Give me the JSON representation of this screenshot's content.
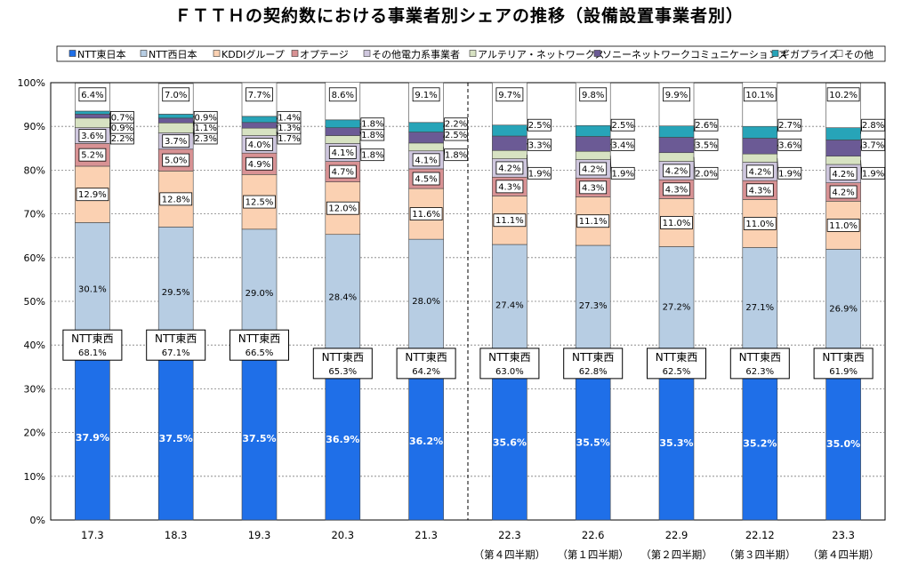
{
  "chart_data": {
    "type": "bar",
    "stacked": true,
    "title": "ＦＴＴＨの契約数における事業者別シェアの推移（設備設置事業者別）",
    "categories": [
      "17.3",
      "18.3",
      "19.3",
      "20.3",
      "21.3",
      "22.3",
      "22.6",
      "22.9",
      "22.12",
      "23.3"
    ],
    "category_sublabels": [
      "",
      "",
      "",
      "",
      "",
      "（第４四半期）",
      "（第１四半期）",
      "（第２四半期）",
      "（第３四半期）",
      "（第４四半期）"
    ],
    "ylim": [
      0,
      100
    ],
    "yticks": [
      "0%",
      "10%",
      "20%",
      "30%",
      "40%",
      "50%",
      "60%",
      "70%",
      "80%",
      "90%",
      "100%"
    ],
    "grid": true,
    "legend_position": "top",
    "combined_label": "NTT東西",
    "combined_values": [
      "68.1%",
      "67.1%",
      "66.5%",
      "65.3%",
      "64.2%",
      "63.0%",
      "62.8%",
      "62.5%",
      "62.3%",
      "61.9%"
    ],
    "series": [
      {
        "name": "NTT東日本",
        "color": "#1f6fe8",
        "values": [
          37.9,
          37.5,
          37.5,
          36.9,
          36.2,
          35.6,
          35.5,
          35.3,
          35.2,
          35.0
        ],
        "labels": [
          "37.9%",
          "37.5%",
          "37.5%",
          "36.9%",
          "36.2%",
          "35.6%",
          "35.5%",
          "35.3%",
          "35.2%",
          "35.0%"
        ]
      },
      {
        "name": "NTT西日本",
        "color": "#b7cde3",
        "values": [
          30.1,
          29.5,
          29.0,
          28.4,
          28.0,
          27.4,
          27.3,
          27.2,
          27.1,
          26.9
        ],
        "labels": [
          "30.1%",
          "29.5%",
          "29.0%",
          "28.4%",
          "28.0%",
          "27.4%",
          "27.3%",
          "27.2%",
          "27.1%",
          "26.9%"
        ]
      },
      {
        "name": "KDDIグループ",
        "color": "#fbd1b2",
        "values": [
          12.9,
          12.8,
          12.5,
          12.0,
          11.6,
          11.1,
          11.1,
          11.0,
          11.0,
          11.0
        ],
        "labels": [
          "12.9%",
          "12.8%",
          "12.5%",
          "12.0%",
          "11.6%",
          "11.1%",
          "11.1%",
          "11.0%",
          "11.0%",
          "11.0%"
        ]
      },
      {
        "name": "オプテージ",
        "color": "#d89294",
        "values": [
          5.2,
          5.0,
          4.9,
          4.7,
          4.5,
          4.3,
          4.3,
          4.3,
          4.3,
          4.2
        ],
        "labels": [
          "5.2%",
          "5.0%",
          "4.9%",
          "4.7%",
          "4.5%",
          "4.3%",
          "4.3%",
          "4.3%",
          "4.3%",
          "4.2%"
        ]
      },
      {
        "name": "その他電力系事業者",
        "color": "#cfc7de",
        "values": [
          3.6,
          3.7,
          4.0,
          4.1,
          4.1,
          4.2,
          4.2,
          4.2,
          4.2,
          4.2
        ],
        "labels": [
          "3.6%",
          "3.7%",
          "4.0%",
          "4.1%",
          "4.1%",
          "4.2%",
          "4.2%",
          "4.2%",
          "4.2%",
          "4.2%"
        ]
      },
      {
        "name": "アルテリア・ネットワークス",
        "color": "#d7e2c2",
        "values": [
          2.2,
          2.3,
          1.7,
          1.8,
          1.8,
          1.9,
          1.9,
          2.0,
          1.9,
          1.9
        ],
        "labels": [
          "2.2%",
          "2.3%",
          "1.7%",
          "1.8%",
          "1.8%",
          "1.9%",
          "1.9%",
          "2.0%",
          "1.9%",
          "1.9%"
        ]
      },
      {
        "name": "ソニーネットワークコミュニケーションズ",
        "color": "#6b5a95",
        "values": [
          0.9,
          1.1,
          1.3,
          1.8,
          2.5,
          3.3,
          3.4,
          3.5,
          3.6,
          3.7
        ],
        "labels": [
          "0.9%",
          "1.1%",
          "1.3%",
          "1.8%",
          "2.5%",
          "3.3%",
          "3.4%",
          "3.5%",
          "3.6%",
          "3.7%"
        ]
      },
      {
        "name": "ギガプライズ",
        "color": "#27a4b8",
        "values": [
          0.7,
          0.9,
          1.4,
          1.8,
          2.2,
          2.5,
          2.5,
          2.6,
          2.7,
          2.8
        ],
        "labels": [
          "0.7%",
          "0.9%",
          "1.4%",
          "1.8%",
          "2.2%",
          "2.5%",
          "2.5%",
          "2.6%",
          "2.7%",
          "2.8%"
        ]
      },
      {
        "name": "その他",
        "color": "#ffffff",
        "values": [
          6.4,
          7.0,
          7.7,
          8.6,
          9.1,
          9.7,
          9.8,
          9.9,
          10.1,
          10.2
        ],
        "labels": [
          "6.4%",
          "7.0%",
          "7.7%",
          "8.6%",
          "9.1%",
          "9.7%",
          "9.8%",
          "9.9%",
          "10.1%",
          "10.2%"
        ]
      }
    ]
  }
}
